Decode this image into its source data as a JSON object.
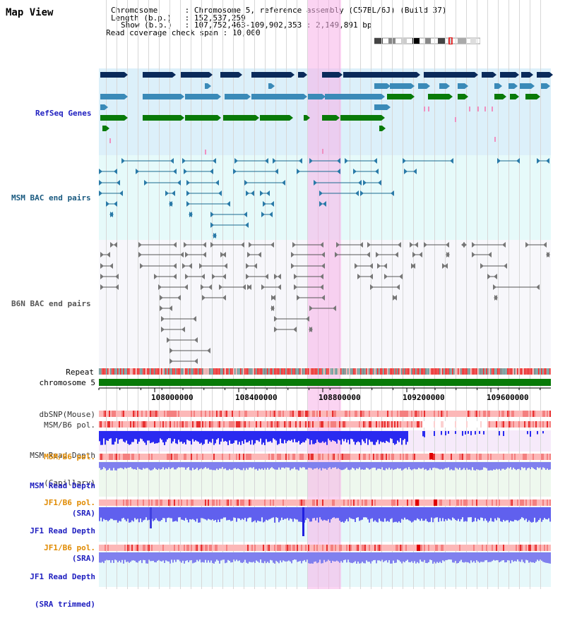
{
  "title": "Map View",
  "info": {
    "chromosome_key": "Chromosome",
    "chromosome_val": "Chromosome 5, reference assembly (C57BL/6J) (Build 37)",
    "length_key": "Length (b.p.)",
    "length_val": "152,537,259",
    "show_key": "Show (b.p.)",
    "show_val": "107,752,463-109,902,353 : 2,149,891 bp",
    "span_key": "Read coverage check span",
    "span_val": "10,000"
  },
  "tracks": {
    "refseq": "RefSeq Genes",
    "msm_bac": "MSM BAC end pairs",
    "b6n_bac": "B6N BAC end pairs",
    "repeat": "Repeat",
    "chromosome": "chromosome 5",
    "dbsnp": "dbSNP(Mouse)",
    "msm_pol1": "MSM/B6 pol.",
    "msm_depth_cap_1": "MSM Read Depth",
    "msm_depth_cap_2": "(Capillary)",
    "msm_pol2": "MSM/B6 pol.",
    "msm_depth_sra_1": "MSM Read Depth",
    "msm_depth_sra_2": "(SRA)",
    "jf1_pol1": "JF1/B6 pol.",
    "jf1_depth_1": "JF1 Read Depth",
    "jf1_depth_2": "(SRA)",
    "jf1_pol2": "JF1/B6 pol.",
    "jf1_trim_1": "JF1 Read Depth",
    "jf1_trim_2": "(SRA trimmed)"
  },
  "axis_ticks": [
    "108000000",
    "108400000",
    "108800000",
    "109200000",
    "109600000"
  ],
  "colors": {
    "refseq_bg": "#dcf0fa",
    "msm_bg": "#e6fafa",
    "b6n_bg": "#f4f4fa",
    "highlight": "#f8b0e8",
    "navy": "#0a2a5a",
    "teal": "#3a8ab8",
    "green": "#087a08",
    "label_blue": "#2020c0",
    "label_teal": "#1a5a80",
    "label_orange": "#e08a00",
    "depth_blue": "#4040f0"
  }
}
